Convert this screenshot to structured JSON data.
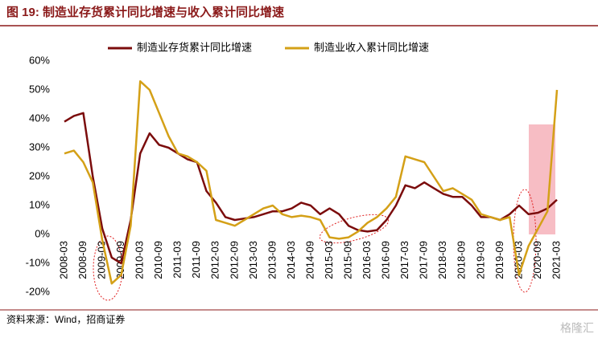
{
  "chart_data": {
    "type": "line",
    "title": "图 19:  制造业存货累计同比增速与收入累计同比增速",
    "source": "资料来源：Wind，招商证券",
    "watermark": "格隆汇",
    "categories": [
      "2008-03",
      null,
      "2008-09",
      null,
      "2009-03",
      null,
      "2009-09",
      null,
      "2010-03",
      null,
      "2010-09",
      null,
      "2011-03",
      null,
      "2011-09",
      null,
      "2012-03",
      null,
      "2012-09",
      null,
      "2013-03",
      null,
      "2013-09",
      null,
      "2014-03",
      null,
      "2014-09",
      null,
      "2015-03",
      null,
      "2015-09",
      null,
      "2016-03",
      null,
      "2016-09",
      null,
      "2017-03",
      null,
      "2017-09",
      null,
      "2018-03",
      null,
      "2018-09",
      null,
      "2019-03",
      null,
      "2019-09",
      null,
      "2020-03",
      null,
      "2020-09",
      null,
      "2021-03"
    ],
    "series": [
      {
        "name": "制造业存货累计同比增速",
        "color": "#7b0c0c",
        "values": [
          39,
          41,
          42,
          20,
          2,
          -8,
          -10,
          5,
          28,
          35,
          31,
          30,
          28,
          26,
          25,
          15,
          11,
          6,
          5,
          5.5,
          6,
          7,
          8,
          8,
          9,
          11,
          10,
          7,
          9,
          7,
          3,
          1.5,
          1,
          1.5,
          5,
          10,
          17,
          16,
          18,
          16,
          14,
          13,
          13,
          10,
          6,
          6,
          5,
          7,
          10,
          7,
          7.5,
          9,
          12
        ]
      },
      {
        "name": "制造业收入累计同比增速",
        "color": "#d4a017",
        "values": [
          28,
          29,
          25,
          18,
          -2,
          -17,
          -14,
          3,
          53,
          50,
          42,
          34,
          28,
          27,
          25,
          22,
          5,
          4,
          3,
          5,
          7,
          9,
          10,
          7,
          6,
          6.5,
          6,
          5,
          -1,
          -1.5,
          -1,
          1,
          4,
          6,
          9,
          13,
          27,
          26,
          25,
          20,
          15,
          16,
          14,
          12,
          7,
          6,
          5,
          6,
          -14,
          -4,
          2,
          8,
          50
        ]
      }
    ],
    "ylim": [
      -20,
      60
    ],
    "yticks": [
      {
        "value": -20,
        "label": "-20%"
      },
      {
        "value": -10,
        "label": "-10%"
      },
      {
        "value": 0,
        "label": "0%"
      },
      {
        "value": 10,
        "label": "10%"
      },
      {
        "value": 20,
        "label": "20%"
      },
      {
        "value": 30,
        "label": "30%"
      },
      {
        "value": 40,
        "label": "40%"
      },
      {
        "value": 50,
        "label": "50%"
      },
      {
        "value": 60,
        "label": "60%"
      }
    ],
    "legend": "top"
  }
}
